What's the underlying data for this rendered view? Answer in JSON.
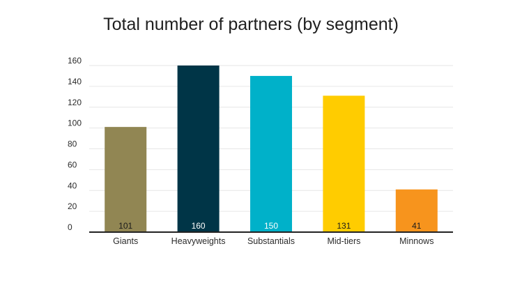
{
  "chart_data": {
    "type": "bar",
    "title": "Total number of partners (by segment)",
    "xlabel": "",
    "ylabel": "",
    "categories": [
      "Giants",
      "Heavyweights",
      "Substantials",
      "Mid-tiers",
      "Minnows"
    ],
    "values": [
      101,
      160,
      150,
      131,
      41
    ],
    "bar_colors": [
      "#918653",
      "#003547",
      "#00b1c9",
      "#ffcc00",
      "#f7941d"
    ],
    "data_label_colors": [
      "#1a1a1a",
      "#ffffff",
      "#ffffff",
      "#1a1a1a",
      "#1a1a1a"
    ],
    "ylim": [
      0,
      160
    ],
    "yticks": [
      0,
      20,
      40,
      60,
      80,
      100,
      120,
      140,
      160
    ],
    "grid": true,
    "legend": "none"
  }
}
